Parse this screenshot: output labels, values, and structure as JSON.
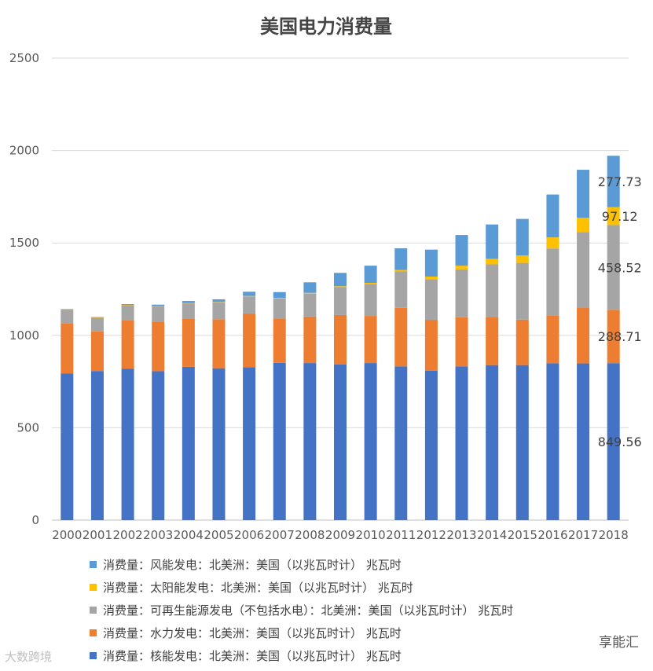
{
  "chart_data": {
    "type": "stacked-bar",
    "title": "美国电力消费量",
    "categories": [
      "2000",
      "2001",
      "2002",
      "2003",
      "2004",
      "2005",
      "2006",
      "2007",
      "2008",
      "2009",
      "2010",
      "2011",
      "2012",
      "2013",
      "2014",
      "2015",
      "2016",
      "2017",
      "2018"
    ],
    "ylim": [
      0,
      2500
    ],
    "yticks": [
      0,
      500,
      1000,
      1500,
      2000,
      2500
    ],
    "series": [
      {
        "name": "消费量：核能发电：北美洲：美国（以兆瓦时计） 兆瓦时",
        "color": "#4472c4",
        "values": [
          793,
          807,
          820,
          806,
          830,
          822,
          828,
          851,
          850,
          842,
          850,
          832,
          808,
          832,
          839,
          839,
          849,
          848,
          849.56
        ]
      },
      {
        "name": "消费量：水力发电：北美洲：美国（以兆瓦时计） 兆瓦时",
        "color": "#ed7d31",
        "values": [
          273,
          214,
          263,
          268,
          262,
          265,
          290,
          240,
          252,
          268,
          255,
          317,
          276,
          266,
          258,
          246,
          260,
          300,
          288.71
        ]
      },
      {
        "name": "消费量：可再生能源发电（不包括水电）：北美洲：美国（以兆瓦时计） 兆瓦时",
        "color": "#a5a5a5",
        "values": [
          73,
          74,
          80,
          82,
          81,
          92,
          93,
          109,
          124,
          152,
          173,
          197,
          220,
          259,
          287,
          307,
          361,
          410,
          458.52
        ]
      },
      {
        "name": "消费量：太阳能发电：北美洲：美国（以兆瓦时计） 兆瓦时",
        "color": "#ffc000",
        "values": [
          3,
          2,
          2,
          2,
          2,
          2,
          2,
          3,
          4,
          4,
          6,
          8,
          14,
          20,
          30,
          40,
          60,
          78,
          97.12
        ]
      },
      {
        "name": "消费量：风能发电：北美洲：美国（以兆瓦时计） 兆瓦时",
        "color": "#5b9bd5",
        "values": [
          1,
          2,
          4,
          8,
          11,
          14,
          23,
          31,
          57,
          72,
          93,
          117,
          146,
          166,
          186,
          198,
          232,
          260,
          277.73
        ]
      }
    ],
    "data_labels": {
      "category": "2018",
      "values": [
        "849.56",
        "288.71",
        "458.52",
        "97.12",
        "277.73"
      ]
    },
    "legend_order": [
      4,
      3,
      2,
      1,
      0
    ],
    "legend_position": "bottom"
  },
  "watermarks": {
    "right": "享能汇",
    "left": "大数跨境"
  }
}
